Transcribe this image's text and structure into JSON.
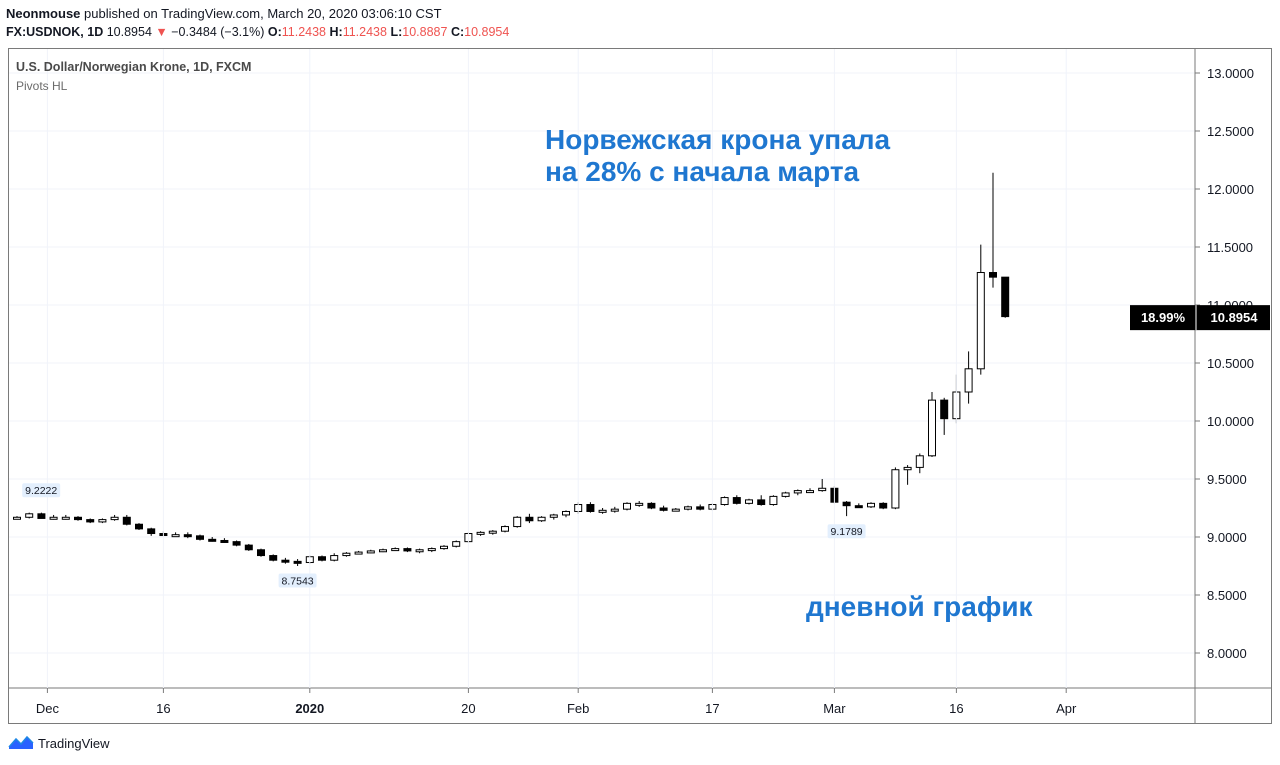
{
  "header": {
    "author": "Neonmouse",
    "published_text": "published on TradingView.com, March 20, 2020 03:06:10 CST"
  },
  "ohlc_bar": {
    "symbol": "FX:USDNOK, 1D",
    "last": "10.8954",
    "change": "−0.3484 (−3.1%)",
    "o_label": "O:",
    "o": "11.2438",
    "h_label": "H:",
    "h": "11.2438",
    "l_label": "L:",
    "l": "10.8887",
    "c_label": "C:",
    "c": "10.8954",
    "down_arrow": "▼",
    "change_color": "#ef5350"
  },
  "pane": {
    "symbol_title": "U.S. Dollar/Norwegian Krone, 1D, FXCM",
    "indicator": "Pivots HL"
  },
  "annotations": {
    "headline_line1": "Норвежская крона упала",
    "headline_line2": "на 28% с начала марта",
    "caption": "дневной график",
    "color": "#1f77d0"
  },
  "footer": {
    "brand": "TradingView"
  },
  "chart_data": {
    "type": "candlestick",
    "y_ticks": [
      "13.0000",
      "12.5000",
      "12.0000",
      "11.5000",
      "11.0000",
      "10.5000",
      "10.0000",
      "9.5000",
      "9.0000",
      "8.5000",
      "8.0000"
    ],
    "ylim": [
      7.7,
      13.2
    ],
    "x_ticks": [
      "Dec",
      "16",
      "2020",
      "20",
      "Feb",
      "17",
      "Mar",
      "16",
      "Apr"
    ],
    "pivots": [
      {
        "label": "9.2222",
        "value": 9.2222,
        "type": "high"
      },
      {
        "label": "8.7543",
        "value": 8.7543,
        "type": "low"
      },
      {
        "label": "9.1789",
        "value": 9.1789,
        "type": "low"
      }
    ],
    "last_price": {
      "pct": "18.99%",
      "price": "10.8954",
      "value": 10.8954
    },
    "candles": [
      [
        9.17,
        9.18,
        9.16,
        9.17
      ],
      [
        9.17,
        9.21,
        9.16,
        9.2
      ],
      [
        9.2,
        9.21,
        9.16,
        9.16
      ],
      [
        9.16,
        9.19,
        9.15,
        9.17
      ],
      [
        9.17,
        9.19,
        9.15,
        9.17
      ],
      [
        9.17,
        9.18,
        9.14,
        9.15
      ],
      [
        9.15,
        9.16,
        9.12,
        9.13
      ],
      [
        9.13,
        9.16,
        9.12,
        9.15
      ],
      [
        9.15,
        9.19,
        9.14,
        9.17
      ],
      [
        9.17,
        9.19,
        9.1,
        9.11
      ],
      [
        9.11,
        9.12,
        9.06,
        9.07
      ],
      [
        9.07,
        9.08,
        9.01,
        9.03
      ],
      [
        9.03,
        9.05,
        9.01,
        9.02
      ],
      [
        9.02,
        9.04,
        9.0,
        9.02
      ],
      [
        9.02,
        9.04,
        8.99,
        9.01
      ],
      [
        9.01,
        9.02,
        8.97,
        8.98
      ],
      [
        8.98,
        9.0,
        8.96,
        8.97
      ],
      [
        8.97,
        8.99,
        8.95,
        8.96
      ],
      [
        8.96,
        8.97,
        8.92,
        8.93
      ],
      [
        8.93,
        8.94,
        8.88,
        8.89
      ],
      [
        8.89,
        8.9,
        8.83,
        8.84
      ],
      [
        8.84,
        8.85,
        8.79,
        8.8
      ],
      [
        8.8,
        8.82,
        8.77,
        8.79
      ],
      [
        8.79,
        8.81,
        8.75,
        8.78
      ],
      [
        8.78,
        8.84,
        8.77,
        8.83
      ],
      [
        8.83,
        8.84,
        8.79,
        8.8
      ],
      [
        8.8,
        8.86,
        8.79,
        8.84
      ],
      [
        8.84,
        8.87,
        8.83,
        8.86
      ],
      [
        8.86,
        8.88,
        8.85,
        8.87
      ],
      [
        8.87,
        8.89,
        8.86,
        8.88
      ],
      [
        8.88,
        8.9,
        8.87,
        8.89
      ],
      [
        8.89,
        8.91,
        8.88,
        8.9
      ],
      [
        8.9,
        8.91,
        8.87,
        8.88
      ],
      [
        8.88,
        8.9,
        8.86,
        8.89
      ],
      [
        8.89,
        8.91,
        8.87,
        8.9
      ],
      [
        8.9,
        8.93,
        8.89,
        8.92
      ],
      [
        8.92,
        8.97,
        8.91,
        8.96
      ],
      [
        8.96,
        9.04,
        8.95,
        9.03
      ],
      [
        9.03,
        9.05,
        9.01,
        9.04
      ],
      [
        9.04,
        9.06,
        9.02,
        9.05
      ],
      [
        9.05,
        9.1,
        9.04,
        9.09
      ],
      [
        9.09,
        9.18,
        9.08,
        9.17
      ],
      [
        9.17,
        9.2,
        9.12,
        9.14
      ],
      [
        9.14,
        9.18,
        9.13,
        9.17
      ],
      [
        9.17,
        9.2,
        9.15,
        9.19
      ],
      [
        9.19,
        9.23,
        9.17,
        9.22
      ],
      [
        9.22,
        9.3,
        9.2,
        9.28
      ],
      [
        9.28,
        9.3,
        9.21,
        9.22
      ],
      [
        9.22,
        9.25,
        9.2,
        9.23
      ],
      [
        9.23,
        9.26,
        9.21,
        9.24
      ],
      [
        9.24,
        9.3,
        9.23,
        9.29
      ],
      [
        9.29,
        9.31,
        9.26,
        9.29
      ],
      [
        9.29,
        9.3,
        9.24,
        9.25
      ],
      [
        9.25,
        9.27,
        9.22,
        9.23
      ],
      [
        9.23,
        9.25,
        9.22,
        9.24
      ],
      [
        9.24,
        9.27,
        9.23,
        9.26
      ],
      [
        9.26,
        9.28,
        9.23,
        9.24
      ],
      [
        9.24,
        9.29,
        9.23,
        9.28
      ],
      [
        9.28,
        9.35,
        9.27,
        9.34
      ],
      [
        9.34,
        9.36,
        9.28,
        9.29
      ],
      [
        9.29,
        9.33,
        9.28,
        9.32
      ],
      [
        9.32,
        9.36,
        9.27,
        9.28
      ],
      [
        9.28,
        9.36,
        9.27,
        9.35
      ],
      [
        9.35,
        9.39,
        9.34,
        9.38
      ],
      [
        9.38,
        9.41,
        9.36,
        9.4
      ],
      [
        9.4,
        9.42,
        9.38,
        9.4
      ],
      [
        9.4,
        9.5,
        9.39,
        9.42
      ],
      [
        9.42,
        9.44,
        9.29,
        9.3
      ],
      [
        9.3,
        9.31,
        9.18,
        9.27
      ],
      [
        9.27,
        9.29,
        9.25,
        9.26
      ],
      [
        9.26,
        9.3,
        9.25,
        9.29
      ],
      [
        9.29,
        9.3,
        9.24,
        9.25
      ],
      [
        9.25,
        9.6,
        9.24,
        9.58
      ],
      [
        9.58,
        9.62,
        9.45,
        9.6
      ],
      [
        9.6,
        9.72,
        9.55,
        9.7
      ],
      [
        9.7,
        10.25,
        9.69,
        10.18
      ],
      [
        10.18,
        10.2,
        9.88,
        10.02
      ],
      [
        10.02,
        10.4,
        9.98,
        10.25
      ],
      [
        10.25,
        10.6,
        10.15,
        10.45
      ],
      [
        10.45,
        11.52,
        10.4,
        11.28
      ],
      [
        11.28,
        12.14,
        11.15,
        11.24
      ],
      [
        11.24,
        11.24,
        10.89,
        10.9
      ]
    ]
  }
}
